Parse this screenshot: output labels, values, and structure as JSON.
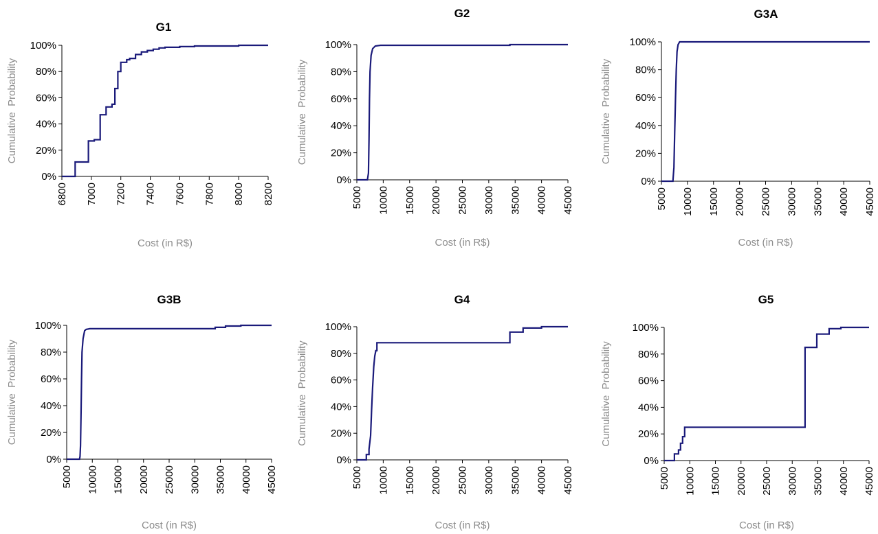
{
  "chart_data": [
    {
      "type": "line",
      "title": "G1",
      "xlabel": "Cost (in R$)",
      "ylabel": "Cumulative  Probability",
      "xlim": [
        6800,
        8200
      ],
      "ylim": [
        0,
        1
      ],
      "xticks": [
        "6800",
        "7000",
        "7200",
        "7400",
        "7600",
        "7800",
        "8000",
        "8200"
      ],
      "yticks": [
        "0%",
        "20%",
        "40%",
        "60%",
        "80%",
        "100%"
      ],
      "grid": false,
      "series": [
        {
          "x": [
            6800,
            6890,
            6890,
            6980,
            6980,
            7020,
            7020,
            7060,
            7060,
            7100,
            7100,
            7140,
            7140,
            7160,
            7160,
            7180,
            7180,
            7200,
            7200,
            7240,
            7240,
            7260,
            7260,
            7300,
            7300,
            7340,
            7340,
            7380,
            7380,
            7420,
            7420,
            7460,
            7460,
            7500,
            7500,
            7600,
            7600,
            7700,
            7700,
            8000,
            8000,
            8200
          ],
          "y": [
            0,
            0,
            0.11,
            0.11,
            0.27,
            0.27,
            0.28,
            0.28,
            0.47,
            0.47,
            0.53,
            0.53,
            0.55,
            0.55,
            0.67,
            0.67,
            0.8,
            0.8,
            0.87,
            0.87,
            0.89,
            0.89,
            0.9,
            0.9,
            0.93,
            0.93,
            0.95,
            0.95,
            0.96,
            0.96,
            0.97,
            0.97,
            0.98,
            0.98,
            0.985,
            0.985,
            0.99,
            0.99,
            0.995,
            0.995,
            1.0,
            1.0
          ]
        }
      ]
    },
    {
      "type": "line",
      "title": "G2",
      "xlabel": "Cost (in R$)",
      "ylabel": "Cumulative  Probability",
      "xlim": [
        5000,
        45000
      ],
      "ylim": [
        0,
        1
      ],
      "xticks": [
        "5000",
        "10000",
        "15000",
        "20000",
        "25000",
        "30000",
        "35000",
        "40000",
        "45000"
      ],
      "yticks": [
        "0%",
        "20%",
        "40%",
        "60%",
        "80%",
        "100%"
      ],
      "grid": false,
      "series": [
        {
          "x": [
            5000,
            7000,
            7200,
            7300,
            7400,
            7500,
            7700,
            8000,
            8500,
            9500,
            34000,
            34000,
            45000
          ],
          "y": [
            0,
            0,
            0.05,
            0.3,
            0.6,
            0.8,
            0.92,
            0.97,
            0.99,
            0.995,
            0.995,
            1.0,
            1.0
          ]
        }
      ]
    },
    {
      "type": "line",
      "title": "G3A",
      "xlabel": "Cost (in R$)",
      "ylabel": "Cumulative  Probability",
      "xlim": [
        5000,
        45000
      ],
      "ylim": [
        0,
        1
      ],
      "xticks": [
        "5000",
        "10000",
        "15000",
        "20000",
        "25000",
        "30000",
        "35000",
        "40000",
        "45000"
      ],
      "yticks": [
        "0%",
        "20%",
        "40%",
        "60%",
        "80%",
        "100%"
      ],
      "grid": false,
      "series": [
        {
          "x": [
            5000,
            7200,
            7400,
            7550,
            7700,
            7850,
            8000,
            8200,
            8500,
            45000
          ],
          "y": [
            0,
            0,
            0.1,
            0.35,
            0.6,
            0.8,
            0.93,
            0.98,
            1.0,
            1.0
          ]
        }
      ]
    },
    {
      "type": "line",
      "title": "G3B",
      "xlabel": "Cost (in R$)",
      "ylabel": "Cumulative  Probability",
      "xlim": [
        5000,
        45000
      ],
      "ylim": [
        0,
        1
      ],
      "xticks": [
        "5000",
        "10000",
        "15000",
        "20000",
        "25000",
        "30000",
        "35000",
        "40000",
        "45000"
      ],
      "yticks": [
        "0%",
        "20%",
        "40%",
        "60%",
        "80%",
        "100%"
      ],
      "grid": false,
      "series": [
        {
          "x": [
            5000,
            7500,
            7600,
            7700,
            7800,
            7900,
            8000,
            8200,
            8500,
            8800,
            9500,
            34000,
            34000,
            36000,
            36000,
            39000,
            39000,
            45000
          ],
          "y": [
            0,
            0,
            0.02,
            0.1,
            0.35,
            0.6,
            0.8,
            0.9,
            0.96,
            0.97,
            0.975,
            0.975,
            0.985,
            0.985,
            0.995,
            0.995,
            1.0,
            1.0
          ]
        }
      ]
    },
    {
      "type": "line",
      "title": "G4",
      "xlabel": "Cost (in R$)",
      "ylabel": "Cumulative  Probability",
      "xlim": [
        5000,
        45000
      ],
      "ylim": [
        0,
        1
      ],
      "xticks": [
        "5000",
        "10000",
        "15000",
        "20000",
        "25000",
        "30000",
        "35000",
        "40000",
        "45000"
      ],
      "yticks": [
        "0%",
        "20%",
        "40%",
        "60%",
        "80%",
        "100%"
      ],
      "grid": false,
      "series": [
        {
          "x": [
            5000,
            6800,
            6800,
            7300,
            7300,
            7600,
            7800,
            8000,
            8200,
            8400,
            8600,
            8800,
            8800,
            9000,
            34000,
            34000,
            36500,
            36500,
            40000,
            40000,
            45000
          ],
          "y": [
            0,
            0,
            0.04,
            0.04,
            0.08,
            0.18,
            0.38,
            0.55,
            0.7,
            0.78,
            0.82,
            0.82,
            0.88,
            0.88,
            0.88,
            0.96,
            0.96,
            0.99,
            0.99,
            1.0,
            1.0
          ]
        }
      ]
    },
    {
      "type": "line",
      "title": "G5",
      "xlabel": "Cost (in R$)",
      "ylabel": "Cumulative  Probability",
      "xlim": [
        5000,
        45000
      ],
      "ylim": [
        0,
        1
      ],
      "xticks": [
        "5000",
        "10000",
        "15000",
        "20000",
        "25000",
        "30000",
        "35000",
        "40000",
        "45000"
      ],
      "yticks": [
        "0%",
        "20%",
        "40%",
        "60%",
        "80%",
        "100%"
      ],
      "grid": false,
      "series": [
        {
          "x": [
            5000,
            7000,
            7000,
            7800,
            7800,
            8200,
            8200,
            8600,
            8600,
            9000,
            9000,
            9300,
            9300,
            32500,
            32500,
            34800,
            34800,
            37200,
            37200,
            39500,
            39500,
            45000
          ],
          "y": [
            0,
            0,
            0.05,
            0.05,
            0.08,
            0.08,
            0.13,
            0.13,
            0.18,
            0.18,
            0.25,
            0.25,
            0.25,
            0.25,
            0.85,
            0.85,
            0.95,
            0.95,
            0.99,
            0.99,
            1.0,
            1.0
          ]
        }
      ]
    }
  ],
  "colors": {
    "line": "#1a1a7a",
    "axis": "#000000",
    "label": "#8c8c8c"
  }
}
